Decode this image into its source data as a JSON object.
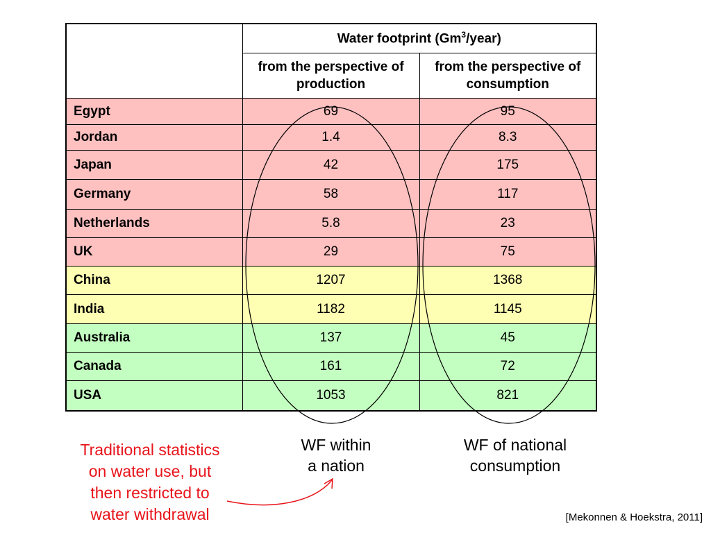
{
  "table": {
    "header_main": "Water footprint (Gm",
    "header_sup": "3",
    "header_tail": "/year)",
    "sub_production": "from the perspective of production",
    "sub_consumption": "from the perspective of consumption",
    "rows": [
      {
        "country": "Egypt",
        "production": "69",
        "consumption": "95",
        "group": "red"
      },
      {
        "country": "Jordan",
        "production": "1.4",
        "consumption": "8.3",
        "group": "red"
      },
      {
        "country": "Japan",
        "production": "42",
        "consumption": "175",
        "group": "red"
      },
      {
        "country": "Germany",
        "production": "58",
        "consumption": "117",
        "group": "red"
      },
      {
        "country": "Netherlands",
        "production": "5.8",
        "consumption": "23",
        "group": "red"
      },
      {
        "country": "UK",
        "production": "29",
        "consumption": "75",
        "group": "red"
      },
      {
        "country": "China",
        "production": "1207",
        "consumption": "1368",
        "group": "yellow"
      },
      {
        "country": "India",
        "production": "1182",
        "consumption": "1145",
        "group": "yellow"
      },
      {
        "country": "Australia",
        "production": "137",
        "consumption": "45",
        "group": "green"
      },
      {
        "country": "Canada",
        "production": "161",
        "consumption": "72",
        "group": "green"
      },
      {
        "country": "USA",
        "production": "1053",
        "consumption": "821",
        "group": "green"
      }
    ]
  },
  "colors": {
    "red_rows": "#ffc0c0",
    "yellow_rows": "#ffffb3",
    "green_rows": "#c3ffc0",
    "annotation_red": "#e8141b"
  },
  "captions": {
    "within_line1": "WF within",
    "within_line2": "a nation",
    "consumption_line1": "WF of national",
    "consumption_line2": "consumption",
    "traditional_lines": [
      "Traditional statistics",
      "on water use, but",
      "then restricted to",
      "water withdrawal"
    ]
  },
  "citation": "[Mekonnen & Hoekstra, 2011]"
}
